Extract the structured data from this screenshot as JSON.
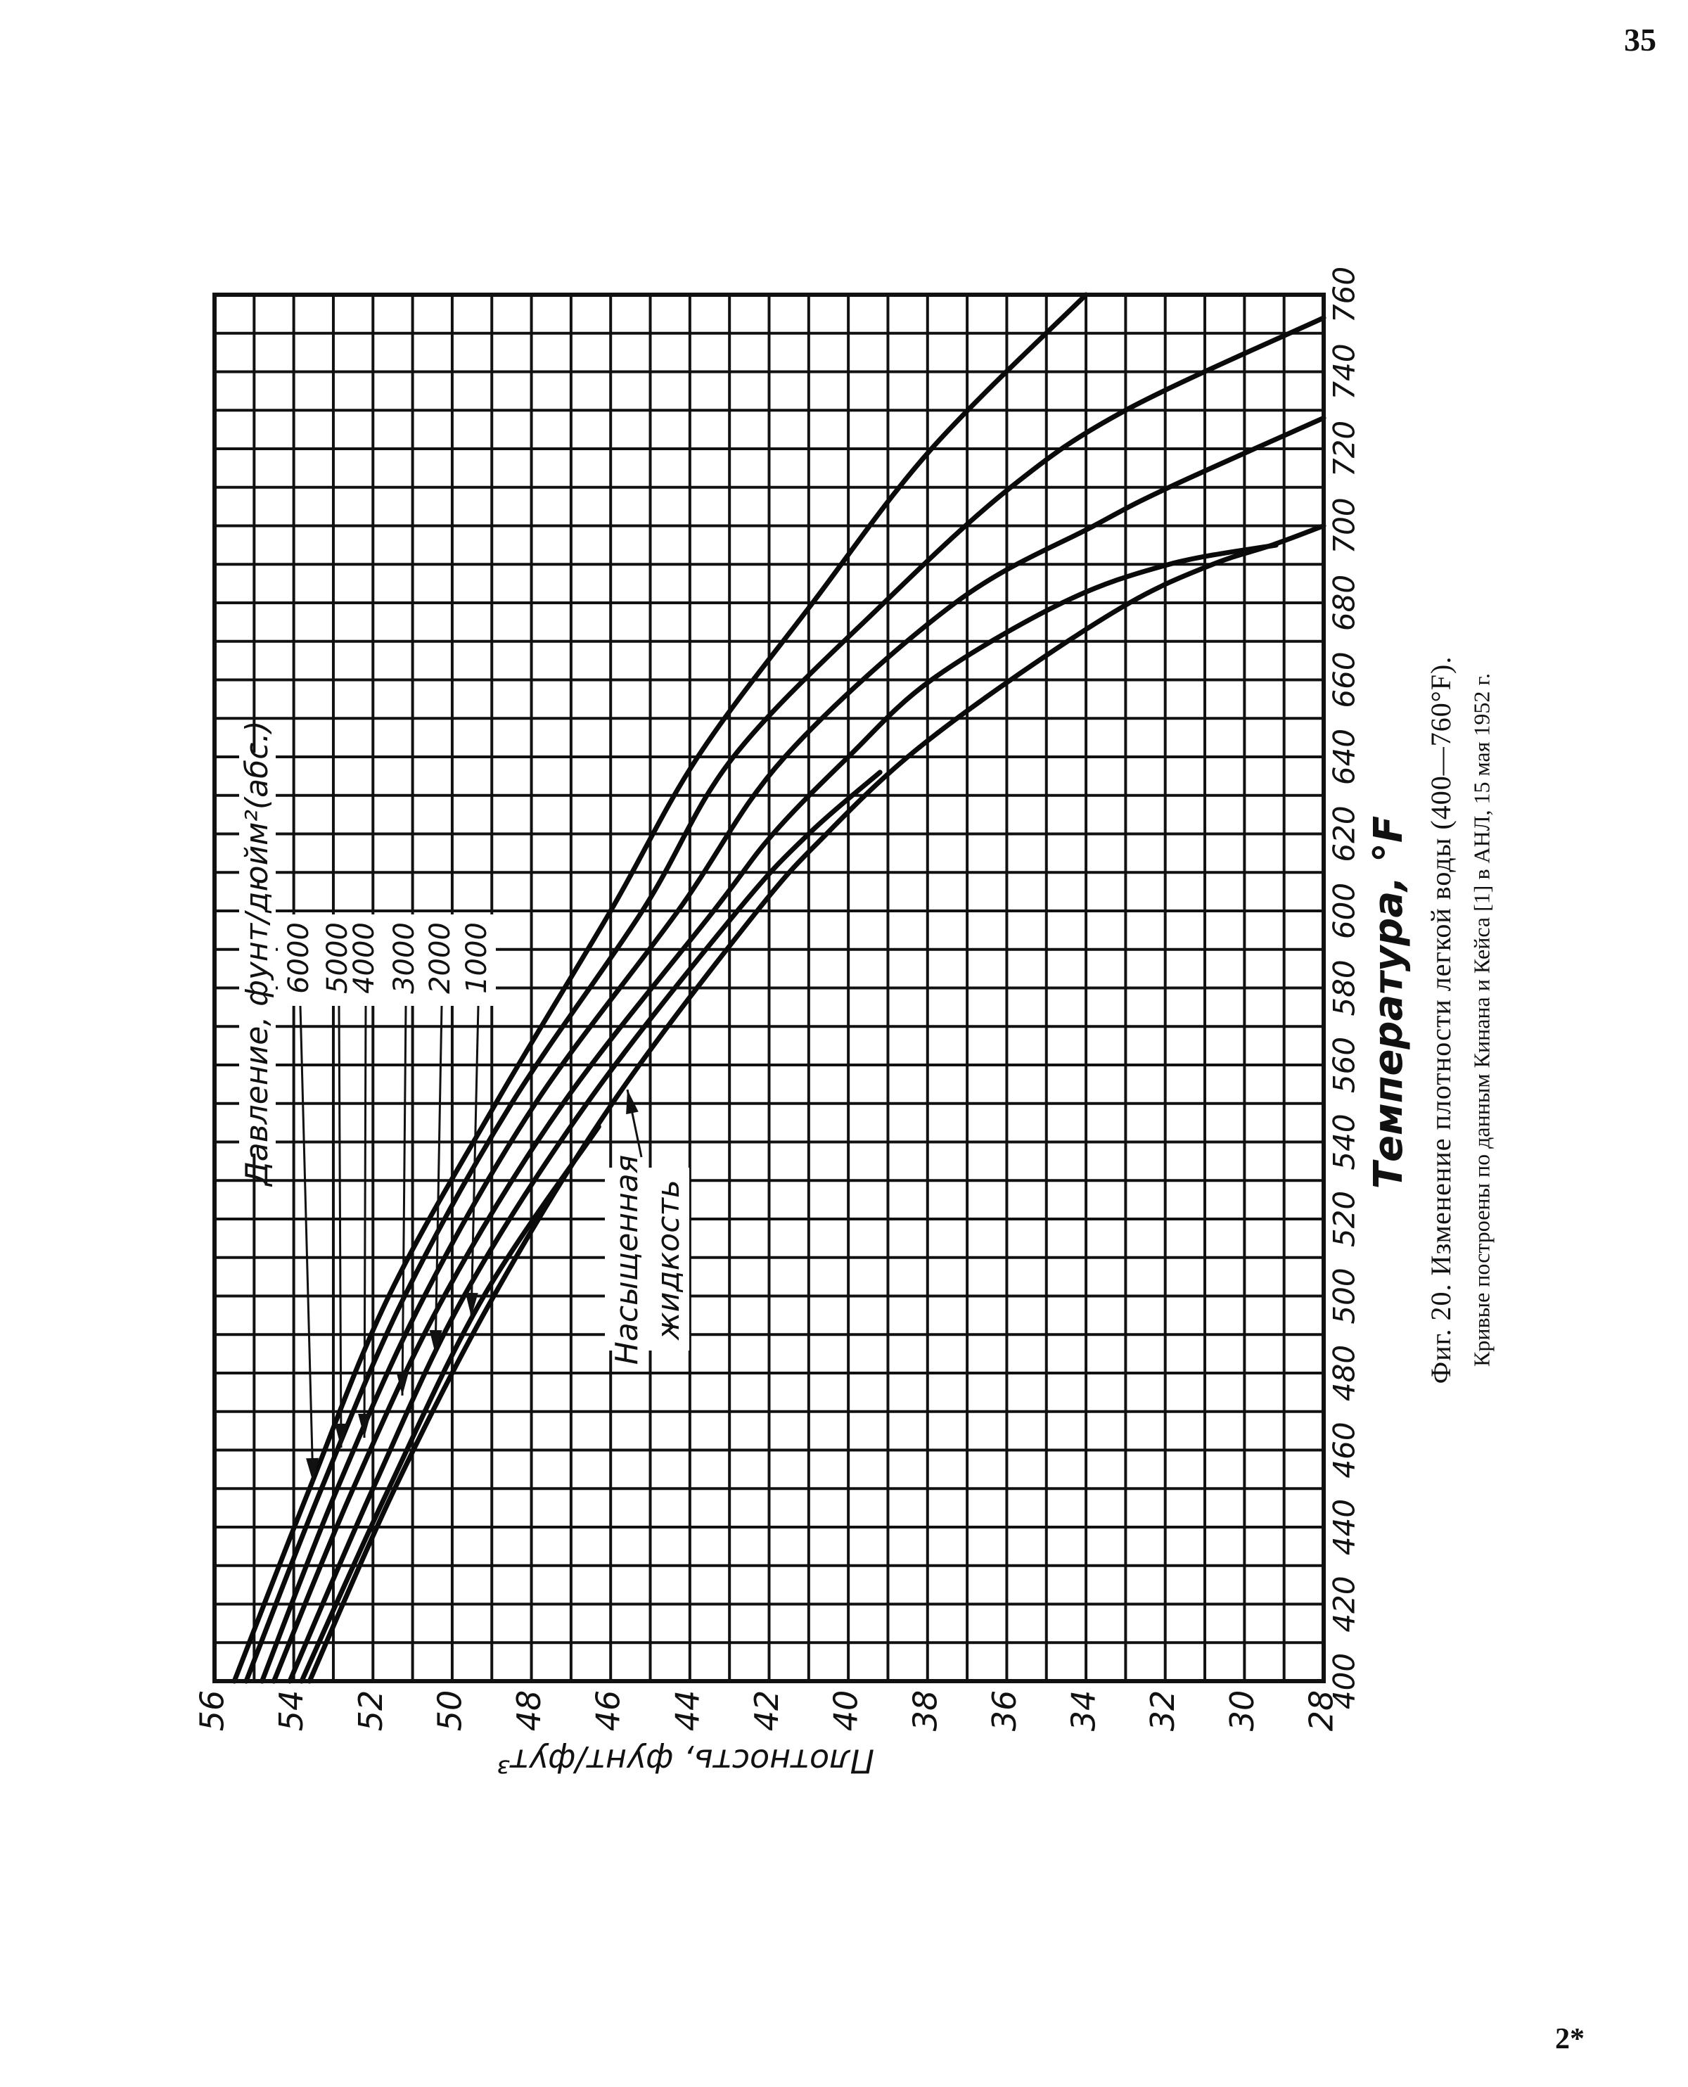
{
  "page": {
    "number": "35",
    "signature": "2*"
  },
  "figure": {
    "caption": "Фиг. 20. Изменение плотности легкой воды (400—760°F).",
    "note": "Кривые построены по данным Кинана и Кейса [1] в АНЛ, 15 мая 1952 г."
  },
  "chart_data": {
    "type": "line",
    "title": "Изменение плотности легкой воды (400—760°F)",
    "xlabel": "Температура, °F",
    "ylabel": "Плотность, фунт/фут³",
    "xlim": [
      400,
      760
    ],
    "ylim": [
      28,
      56
    ],
    "grid": true,
    "x_ticks": [
      "400",
      "420",
      "440",
      "460",
      "480",
      "500",
      "520",
      "540",
      "560",
      "580",
      "600",
      "620",
      "640",
      "660",
      "680",
      "700",
      "720",
      "740",
      "760"
    ],
    "y_ticks": [
      "56",
      "54",
      "52",
      "50",
      "48",
      "46",
      "44",
      "42",
      "40",
      "38",
      "36",
      "34",
      "32",
      "30",
      "28"
    ],
    "legend_title": "Давление, фунт/дюйм²(абс.)",
    "series": [
      {
        "name": "6000",
        "points": [
          [
            400,
            55.5
          ],
          [
            450,
            53.6
          ],
          [
            500,
            51.6
          ],
          [
            550,
            48.9
          ],
          [
            600,
            46.0
          ],
          [
            640,
            43.8
          ],
          [
            680,
            40.9
          ],
          [
            720,
            37.9
          ],
          [
            760,
            34.0
          ]
        ]
      },
      {
        "name": "5000",
        "points": [
          [
            400,
            55.2
          ],
          [
            450,
            53.3
          ],
          [
            500,
            51.2
          ],
          [
            550,
            48.5
          ],
          [
            600,
            45.2
          ],
          [
            640,
            42.9
          ],
          [
            680,
            39.1
          ],
          [
            710,
            35.9
          ],
          [
            730,
            33.0
          ],
          [
            754,
            28.0
          ]
        ]
      },
      {
        "name": "4000",
        "points": [
          [
            400,
            54.8
          ],
          [
            450,
            52.9
          ],
          [
            500,
            50.7
          ],
          [
            550,
            47.9
          ],
          [
            600,
            44.3
          ],
          [
            640,
            41.6
          ],
          [
            680,
            37.3
          ],
          [
            700,
            33.8
          ],
          [
            710,
            31.9
          ],
          [
            728,
            28.0
          ]
        ]
      },
      {
        "name": "3000",
        "points": [
          [
            400,
            54.5
          ],
          [
            450,
            52.5
          ],
          [
            500,
            50.2
          ],
          [
            550,
            47.2
          ],
          [
            600,
            43.4
          ],
          [
            620,
            41.9
          ],
          [
            640,
            40.0
          ],
          [
            660,
            37.9
          ],
          [
            680,
            34.6
          ],
          [
            690,
            31.9
          ],
          [
            695,
            29.2
          ]
        ]
      },
      {
        "name": "2000",
        "points": [
          [
            400,
            54.1
          ],
          [
            450,
            52.0
          ],
          [
            500,
            49.7
          ],
          [
            550,
            46.6
          ],
          [
            600,
            42.8
          ],
          [
            620,
            41.0
          ],
          [
            636,
            39.2
          ]
        ]
      },
      {
        "name": "1000",
        "points": [
          [
            400,
            53.8
          ],
          [
            450,
            51.6
          ],
          [
            500,
            49.2
          ],
          [
            544,
            46.3
          ]
        ]
      },
      {
        "name": "Насыщенная жидкость",
        "points": [
          [
            400,
            53.6
          ],
          [
            450,
            51.45
          ],
          [
            500,
            48.95
          ],
          [
            550,
            45.96
          ],
          [
            600,
            42.3
          ],
          [
            620,
            40.55
          ],
          [
            640,
            38.5
          ],
          [
            660,
            35.9
          ],
          [
            680,
            32.9
          ],
          [
            690,
            30.8
          ],
          [
            695,
            29.3
          ],
          [
            700,
            28.0
          ]
        ]
      }
    ]
  }
}
